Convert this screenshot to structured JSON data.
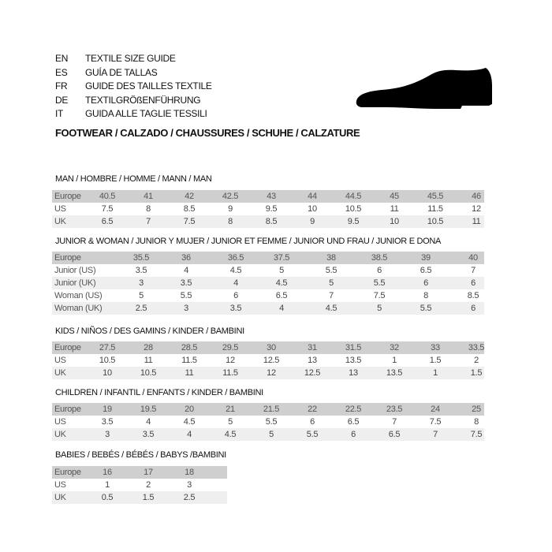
{
  "header": {
    "languages": [
      {
        "code": "EN",
        "text": "TEXTILE SIZE GUIDE"
      },
      {
        "code": "ES",
        "text": "GUÍA DE TALLAS"
      },
      {
        "code": "FR",
        "text": "GUIDE DES TAILLES TEXTILE"
      },
      {
        "code": "DE",
        "text": "TEXTILGRÖßENFÜHRUNG"
      },
      {
        "code": "IT",
        "text": "GUIDA ALLE TAGLIE TESSILI"
      }
    ],
    "footwear": "FOOTWEAR / CALZADO / CHAUSSURES / SCHUHE / CALZATURE",
    "icon": "shoe-icon"
  },
  "colors": {
    "header_row": "#cfcfcf",
    "alt_row": "#efefef",
    "shoe": "#000000"
  },
  "tables": [
    {
      "title": "MAN / HOMBRE / HOMME / MANN / MAN",
      "rows": [
        {
          "label": "Europe",
          "values": [
            "40.5",
            "41",
            "42",
            "42.5",
            "43",
            "44",
            "44.5",
            "45",
            "45.5",
            "46"
          ]
        },
        {
          "label": "US",
          "values": [
            "7.5",
            "8",
            "8.5",
            "9",
            "9.5",
            "10",
            "10.5",
            "11",
            "11.5",
            "12"
          ]
        },
        {
          "label": "UK",
          "values": [
            "6.5",
            "7",
            "7.5",
            "8",
            "8.5",
            "9",
            "9.5",
            "10",
            "10.5",
            "11"
          ]
        }
      ]
    },
    {
      "title": "JUNIOR & WOMAN / JUNIOR Y MUJER / JUNIOR ET FEMME / JUNIOR UND FRAU / JUNIOR E DONA",
      "rows": [
        {
          "label": "Europe",
          "values": [
            "35.5",
            "36",
            "36.5",
            "37.5",
            "38",
            "38.5",
            "39",
            "40"
          ]
        },
        {
          "label": "Junior (US)",
          "values": [
            "3.5",
            "4",
            "4.5",
            "5",
            "5.5",
            "6",
            "6.5",
            "7"
          ]
        },
        {
          "label": "Junior (UK)",
          "values": [
            "3",
            "3.5",
            "4",
            "4.5",
            "5",
            "5.5",
            "6",
            "6"
          ]
        },
        {
          "label": "Woman (US)",
          "values": [
            "5",
            "5.5",
            "6",
            "6.5",
            "7",
            "7.5",
            "8",
            "8.5"
          ]
        },
        {
          "label": "Woman (UK)",
          "values": [
            "2.5",
            "3",
            "3.5",
            "4",
            "4.5",
            "5",
            "5.5",
            "6"
          ]
        }
      ]
    },
    {
      "title": "KIDS / NIÑOS / DES GAMINS / KINDER / BAMBINI",
      "rows": [
        {
          "label": "Europe",
          "values": [
            "27.5",
            "28",
            "28.5",
            "29.5",
            "30",
            "31",
            "31.5",
            "32",
            "33",
            "33.5"
          ]
        },
        {
          "label": "US",
          "values": [
            "10.5",
            "11",
            "11.5",
            "12",
            "12.5",
            "13",
            "13.5",
            "1",
            "1.5",
            "2"
          ]
        },
        {
          "label": "UK",
          "values": [
            "10",
            "10.5",
            "11",
            "11.5",
            "12",
            "12.5",
            "13",
            "13.5",
            "1",
            "1.5"
          ]
        }
      ]
    },
    {
      "title": "CHILDREN / INFANTIL / ENFANTS / KINDER / BAMBINI",
      "rows": [
        {
          "label": "Europe",
          "values": [
            "19",
            "19.5",
            "20",
            "21",
            "21.5",
            "22",
            "22.5",
            "23.5",
            "24",
            "25"
          ]
        },
        {
          "label": "US",
          "values": [
            "3.5",
            "4",
            "4.5",
            "5",
            "5.5",
            "6",
            "6.5",
            "7",
            "7.5",
            "8"
          ]
        },
        {
          "label": "UK",
          "values": [
            "3",
            "3.5",
            "4",
            "4.5",
            "5",
            "5.5",
            "6",
            "6.5",
            "7",
            "7.5"
          ]
        }
      ]
    },
    {
      "title": "BABIES  / BEBÉS / BÉBÉS / BABYS /BAMBINI",
      "rows": [
        {
          "label": "Europe",
          "values": [
            "16",
            "17",
            "18"
          ]
        },
        {
          "label": "US",
          "values": [
            "1",
            "2",
            "3"
          ]
        },
        {
          "label": "UK",
          "values": [
            "0.5",
            "1.5",
            "2.5"
          ]
        }
      ]
    }
  ]
}
